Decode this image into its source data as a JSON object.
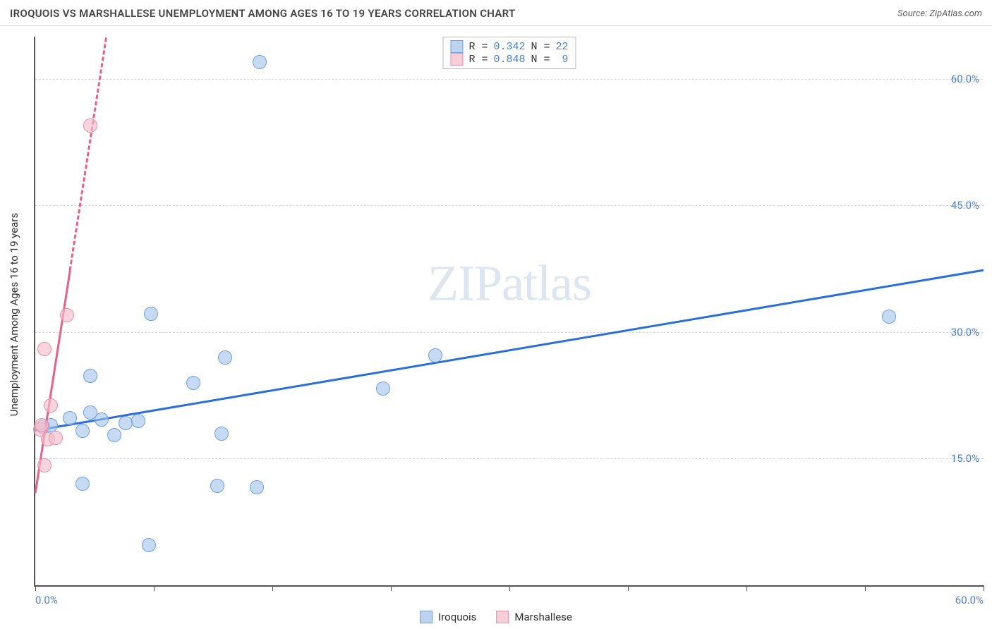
{
  "header": {
    "title": "IROQUOIS VS MARSHALLESE UNEMPLOYMENT AMONG AGES 16 TO 19 YEARS CORRELATION CHART",
    "source": "Source: ZipAtlas.com"
  },
  "chart": {
    "type": "scatter",
    "watermark": "ZIPatlas",
    "background_color": "#ffffff",
    "grid_color": "#d8d8d8",
    "axis_color": "#555555",
    "ylabel": "Unemployment Among Ages 16 to 19 years",
    "ylabel_fontsize": 15,
    "tick_label_color": "#4a7fd6",
    "tick_label_fontsize": 15,
    "xlim": [
      0,
      60
    ],
    "ylim": [
      0,
      65
    ],
    "xticks": [
      0,
      7.5,
      15,
      22.5,
      30,
      37.5,
      45,
      52.5,
      60
    ],
    "xtick_labels_shown": {
      "0": "0.0%",
      "60": "60.0%"
    },
    "yticks": [
      15,
      30,
      45,
      60
    ],
    "ytick_labels": [
      "15.0%",
      "30.0%",
      "45.0%",
      "60.0%"
    ],
    "stats_box": {
      "rows": [
        {
          "swatch_fill": "#bcd4f0",
          "swatch_border": "#6f9fe0",
          "r_label": "R =",
          "r": "0.342",
          "n_label": "N =",
          "n": "22"
        },
        {
          "swatch_fill": "#f7cdd8",
          "swatch_border": "#e58fa8",
          "r_label": "R =",
          "r": "0.848",
          "n_label": "N =",
          "n": " 9"
        }
      ]
    },
    "series": [
      {
        "name": "Iroquois",
        "marker_fill": "rgba(160,195,235,0.60)",
        "marker_border": "#6f9fe0",
        "marker_size": 20,
        "trend_color": "#2a6fd6",
        "trend_width": 3,
        "trend_dash": "solid",
        "trend_line": {
          "x1": 0,
          "y1": 18.5,
          "x2": 60,
          "y2": 37.5
        },
        "points": [
          {
            "x": 14.2,
            "y": 62.0
          },
          {
            "x": 54.0,
            "y": 31.8
          },
          {
            "x": 7.3,
            "y": 32.2
          },
          {
            "x": 25.3,
            "y": 27.2
          },
          {
            "x": 12.0,
            "y": 27.0
          },
          {
            "x": 3.5,
            "y": 24.8
          },
          {
            "x": 10.0,
            "y": 24.0
          },
          {
            "x": 22.0,
            "y": 23.3
          },
          {
            "x": 2.2,
            "y": 19.8
          },
          {
            "x": 4.2,
            "y": 19.6
          },
          {
            "x": 3.5,
            "y": 20.5
          },
          {
            "x": 5.7,
            "y": 19.2
          },
          {
            "x": 6.5,
            "y": 19.5
          },
          {
            "x": 3.0,
            "y": 18.3
          },
          {
            "x": 5.0,
            "y": 17.8
          },
          {
            "x": 11.8,
            "y": 18.0
          },
          {
            "x": 0.5,
            "y": 18.8
          },
          {
            "x": 3.0,
            "y": 12.0
          },
          {
            "x": 11.5,
            "y": 11.8
          },
          {
            "x": 14.0,
            "y": 11.6
          },
          {
            "x": 7.2,
            "y": 4.8
          },
          {
            "x": 1.0,
            "y": 19.0
          }
        ]
      },
      {
        "name": "Marshallese",
        "marker_fill": "rgba(245,190,205,0.65)",
        "marker_border": "#e58fa8",
        "marker_size": 20,
        "trend_color": "#e85f8a",
        "trend_width": 3,
        "trend_dash_solid_until_x": 2.2,
        "trend_dash": "dashed",
        "trend_line": {
          "x1": 0,
          "y1": 11.0,
          "x2": 4.5,
          "y2": 65.0
        },
        "points": [
          {
            "x": 3.5,
            "y": 54.5
          },
          {
            "x": 2.0,
            "y": 32.0
          },
          {
            "x": 0.6,
            "y": 28.0
          },
          {
            "x": 1.0,
            "y": 21.3
          },
          {
            "x": 0.3,
            "y": 18.5
          },
          {
            "x": 0.4,
            "y": 19.0
          },
          {
            "x": 0.8,
            "y": 17.3
          },
          {
            "x": 1.3,
            "y": 17.5
          },
          {
            "x": 0.6,
            "y": 14.2
          }
        ]
      }
    ],
    "x_legend": [
      {
        "swatch_fill": "#bcd4f0",
        "swatch_border": "#6f9fe0",
        "label": "Iroquois"
      },
      {
        "swatch_fill": "#f7cdd8",
        "swatch_border": "#e58fa8",
        "label": "Marshallese"
      }
    ]
  }
}
